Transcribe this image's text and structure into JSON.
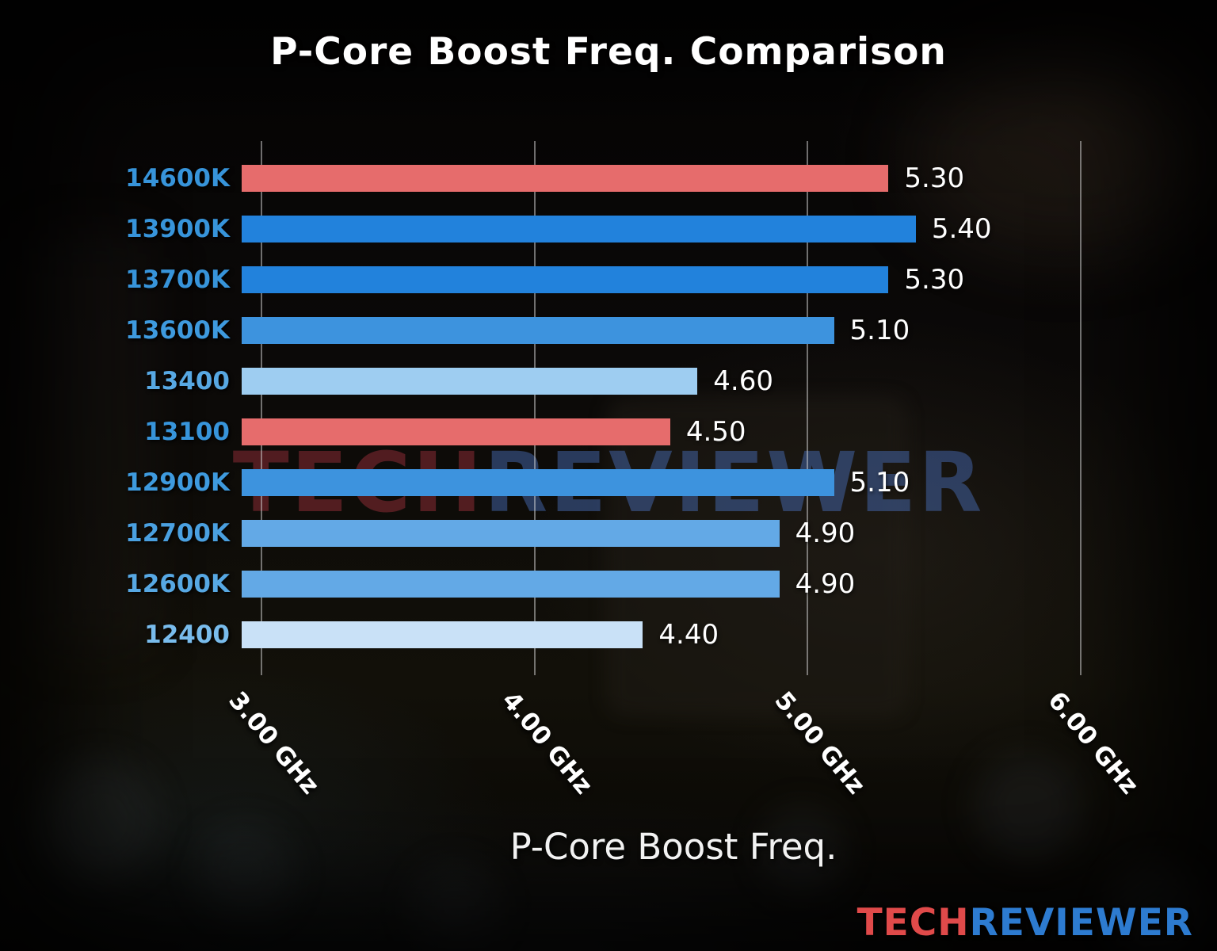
{
  "chart_data": {
    "type": "bar",
    "orientation": "horizontal",
    "title": "P-Core Boost Freq. Comparison",
    "xlabel": "P-Core Boost Freq.",
    "categories": [
      "14600K",
      "13900K",
      "13700K",
      "13600K",
      "13400",
      "13100",
      "12900K",
      "12700K",
      "12600K",
      "12400"
    ],
    "values": [
      5.3,
      5.4,
      5.3,
      5.1,
      4.6,
      4.5,
      5.1,
      4.9,
      4.9,
      4.4
    ],
    "value_labels": [
      "5.30",
      "5.40",
      "5.30",
      "5.10",
      "4.60",
      "4.50",
      "5.10",
      "4.90",
      "4.90",
      "4.40"
    ],
    "unit": "GHz",
    "bar_colors": [
      "#e66c6c",
      "#2282dc",
      "#2282dc",
      "#3d93de",
      "#9ecdf1",
      "#e66c6c",
      "#3d93de",
      "#63a9e6",
      "#63a9e6",
      "#c9e1f7"
    ],
    "label_colors": [
      "#3794da",
      "#3794da",
      "#3794da",
      "#3e9ade",
      "#57a8e3",
      "#3794da",
      "#3e9ade",
      "#4aa0e0",
      "#57a8e3",
      "#79bcec"
    ],
    "x_ticks": [
      {
        "value": 3,
        "label": "3.00 GHz"
      },
      {
        "value": 4,
        "label": "4.00 GHz"
      },
      {
        "value": 5,
        "label": "5.00 GHz"
      },
      {
        "value": 6,
        "label": "6.00 GHz"
      }
    ],
    "xlim": [
      2.93,
      6.37
    ],
    "grid": true,
    "grid_color": "rgba(215,215,215,0.5)",
    "legend": false,
    "text_color": "#ffffff"
  },
  "watermark": {
    "text_red": "TECH",
    "text_blue": "REVIEWER",
    "color_red": "rgba(150,45,55,0.5)",
    "color_blue": "rgba(75,115,195,0.45)"
  },
  "logo": {
    "text_red": "TECH",
    "text_blue": "REVIEWER",
    "color_red": "#e04a4a",
    "color_blue": "#2d7bd0"
  }
}
